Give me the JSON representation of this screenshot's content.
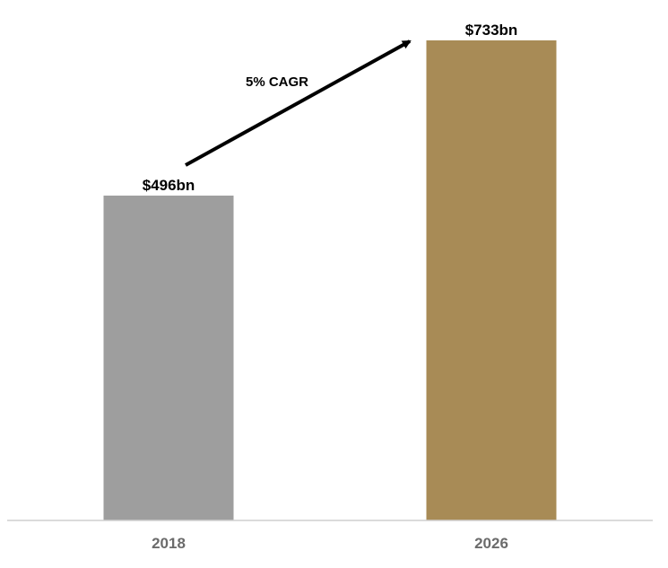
{
  "chart_data": {
    "type": "bar",
    "categories": [
      "2018",
      "2026"
    ],
    "values": [
      496,
      733
    ],
    "data_labels": [
      "$496bn",
      "$733bn"
    ],
    "bar_colors": [
      "#9e9e9e",
      "#a88b56"
    ],
    "ylim": [
      0,
      733
    ],
    "grid": false,
    "legend": "none",
    "annotation": {
      "text": "5% CAGR",
      "type": "arrow",
      "from_category": "2018",
      "to_category": "2026"
    }
  },
  "colors": {
    "axis_line": "#cfcfcf",
    "tick_text": "#6b6b6b",
    "label_text": "#000000"
  }
}
